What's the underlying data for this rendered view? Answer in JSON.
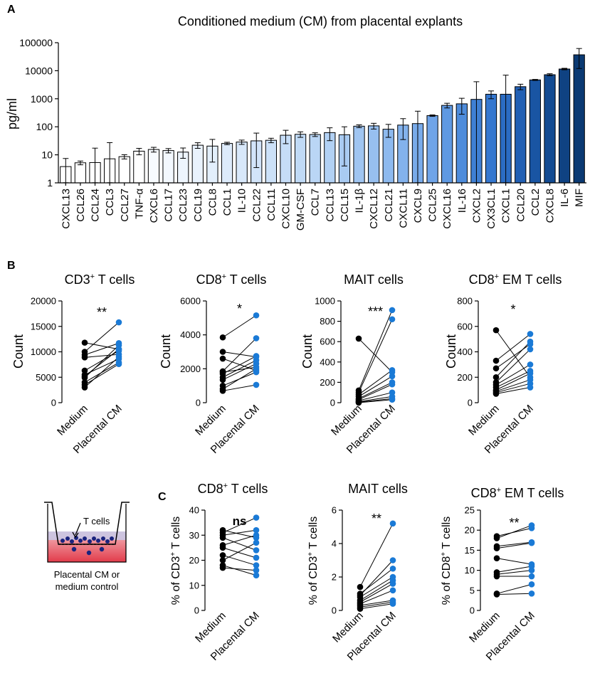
{
  "panel_labels": {
    "a": "A",
    "b": "B",
    "c": "C"
  },
  "chart_data": [
    {
      "id": "A",
      "type": "bar",
      "title": "Conditioned medium (CM) from placental explants",
      "ylabel": "pg/ml",
      "yscale": "log",
      "ylim": [
        1,
        100000
      ],
      "yticks": [
        1,
        10,
        100,
        1000,
        10000,
        100000
      ],
      "ytick_labels": [
        "1",
        "10",
        "100",
        "1000",
        "10000",
        "100000"
      ],
      "categories": [
        "CXCL13",
        "CCL26",
        "CCL24",
        "CCL3",
        "CCL27",
        "TNF-α",
        "CXCL6",
        "CCL17",
        "CCL23",
        "CCL19",
        "CCL8",
        "CCL1",
        "IL-10",
        "CCL22",
        "CCL11",
        "CXCL10",
        "GM-CSF",
        "CCL7",
        "CCL13",
        "CCL15",
        "IL-1β",
        "CXCL12",
        "CCL21",
        "CXCL11",
        "CXCL9",
        "CCL25",
        "CXCL16",
        "IL-16",
        "CXCL2",
        "CX3CL1",
        "CXCL1",
        "CCL20",
        "CCL2",
        "CXCL8",
        "IL-6",
        "MIF"
      ],
      "values": [
        3.8,
        5.2,
        5.3,
        7.2,
        8.6,
        13.5,
        15.5,
        14.2,
        12.5,
        22,
        20.5,
        25.5,
        28.5,
        31.5,
        33,
        50,
        54,
        53,
        62,
        52,
        105,
        108,
        82,
        115,
        130,
        250,
        580,
        660,
        950,
        1450,
        1450,
        2700,
        4700,
        7200,
        11500,
        37000
      ],
      "errors": [
        3.6,
        0.8,
        12,
        20,
        1.5,
        3.5,
        3,
        2.5,
        5,
        5,
        15,
        2.5,
        5,
        28,
        6,
        25,
        12,
        8,
        30,
        48,
        12,
        25,
        40,
        80,
        230,
        15,
        110,
        380,
        3100,
        450,
        5500,
        600,
        200,
        600,
        700,
        25000
      ],
      "colors": [
        "#ffffff",
        "#ffffff",
        "#ffffff",
        "#ffffff",
        "#ffffff",
        "#ffffff",
        "#f7fbff",
        "#f3f8fe",
        "#eef5fd",
        "#e9f2fd",
        "#e3effc",
        "#ddebfb",
        "#d8e8fa",
        "#d2e4f9",
        "#cce1f8",
        "#c6ddf7",
        "#c0daf6",
        "#bad6f5",
        "#b2d1f4",
        "#a9cbf2",
        "#a0c5f1",
        "#97bfef",
        "#8db9ee",
        "#83b2ec",
        "#79abea",
        "#6fa4e8",
        "#5f99e2",
        "#4e8cdb",
        "#3f80d5",
        "#3577cf",
        "#2b6cc3",
        "#2260b4",
        "#1955a3",
        "#134b92",
        "#0f4282",
        "#0b3a73"
      ]
    },
    {
      "id": "B1",
      "type": "scatter",
      "title": "CD3⁺ T cells",
      "ylabel": "Count",
      "ylim": [
        0,
        20000
      ],
      "yticks": [
        0,
        5000,
        10000,
        15000,
        20000
      ],
      "ytick_labels": [
        "0",
        "5000",
        "10000",
        "15000",
        "20000"
      ],
      "categories": [
        "Medium",
        "Placental CM"
      ],
      "significance": "**",
      "series": [
        {
          "name": "Medium",
          "color": "#000000",
          "values": [
            11800,
            10000,
            9400,
            8900,
            6300,
            5500,
            5200,
            4900,
            4000,
            3500,
            3000
          ]
        },
        {
          "name": "Placental CM",
          "color": "#1a7ad6",
          "values": [
            10500,
            15800,
            11700,
            9500,
            10200,
            8600,
            10500,
            11300,
            7900,
            7600,
            9000
          ]
        }
      ]
    },
    {
      "id": "B2",
      "type": "scatter",
      "title": "CD8⁺ T cells",
      "ylabel": "Count",
      "ylim": [
        0,
        6000
      ],
      "yticks": [
        0,
        2000,
        4000,
        6000
      ],
      "ytick_labels": [
        "0",
        "2000",
        "4000",
        "6000"
      ],
      "categories": [
        "Medium",
        "Placental CM"
      ],
      "significance": "*",
      "series": [
        {
          "name": "Medium",
          "color": "#000000",
          "values": [
            3850,
            3000,
            2600,
            1850,
            1800,
            1700,
            1500,
            1350,
            1000,
            800,
            700
          ]
        },
        {
          "name": "Placental CM",
          "color": "#1a7ad6",
          "values": [
            5150,
            2700,
            1900,
            3800,
            2100,
            2750,
            2500,
            2300,
            1800,
            2000,
            1050
          ]
        }
      ]
    },
    {
      "id": "B3",
      "type": "scatter",
      "title": "MAIT cells",
      "ylabel": "Count",
      "ylim": [
        0,
        1000
      ],
      "yticks": [
        0,
        200,
        400,
        600,
        800,
        1000
      ],
      "ytick_labels": [
        "0",
        "200",
        "400",
        "600",
        "800",
        "1000"
      ],
      "categories": [
        "Medium",
        "Placental CM"
      ],
      "significance": "***",
      "series": [
        {
          "name": "Medium",
          "color": "#000000",
          "values": [
            630,
            120,
            100,
            80,
            60,
            40,
            30,
            20,
            10,
            5,
            0
          ]
        },
        {
          "name": "Placental CM",
          "color": "#1a7ad6",
          "values": [
            300,
            910,
            820,
            320,
            260,
            200,
            180,
            100,
            60,
            40,
            30
          ]
        }
      ]
    },
    {
      "id": "B4",
      "type": "scatter",
      "title": "CD8⁺ EM T cells",
      "ylabel": "Count",
      "ylim": [
        0,
        800
      ],
      "yticks": [
        0,
        200,
        400,
        600,
        800
      ],
      "ytick_labels": [
        "0",
        "200",
        "400",
        "600",
        "800"
      ],
      "categories": [
        "Medium",
        "Placental CM"
      ],
      "significance": "*",
      "series": [
        {
          "name": "Medium",
          "color": "#000000",
          "values": [
            570,
            330,
            270,
            200,
            160,
            140,
            120,
            100,
            90,
            80,
            70
          ]
        },
        {
          "name": "Placental CM",
          "color": "#1a7ad6",
          "values": [
            200,
            540,
            460,
            480,
            420,
            300,
            250,
            230,
            180,
            150,
            120
          ]
        }
      ]
    },
    {
      "id": "C1",
      "type": "scatter",
      "title": "CD8⁺ T cells",
      "ylabel": "% of CD3⁺ T cells",
      "ylim": [
        0,
        40
      ],
      "yticks": [
        0,
        10,
        20,
        30,
        40
      ],
      "ytick_labels": [
        "0",
        "10",
        "20",
        "30",
        "40"
      ],
      "categories": [
        "Medium",
        "Placental CM"
      ],
      "significance": "ns",
      "series": [
        {
          "name": "Medium",
          "color": "#000000",
          "values": [
            32,
            31,
            30,
            29,
            26,
            25,
            22,
            20,
            18,
            17
          ]
        },
        {
          "name": "Placental CM",
          "color": "#1a7ad6",
          "values": [
            29,
            37,
            32,
            24,
            30,
            21,
            18,
            27,
            14,
            16
          ]
        }
      ]
    },
    {
      "id": "C2",
      "type": "scatter",
      "title": "MAIT cells",
      "ylabel": "% of CD3⁺ T cells",
      "ylim": [
        0,
        6
      ],
      "yticks": [
        0,
        2,
        4,
        6
      ],
      "ytick_labels": [
        "0",
        "2",
        "4",
        "6"
      ],
      "categories": [
        "Medium",
        "Placental CM"
      ],
      "significance": "**",
      "series": [
        {
          "name": "Medium",
          "color": "#000000",
          "values": [
            1.4,
            1.0,
            0.9,
            0.8,
            0.6,
            0.5,
            0.4,
            0.3,
            0.2,
            0.1
          ]
        },
        {
          "name": "Placental CM",
          "color": "#1a7ad6",
          "values": [
            5.2,
            2.5,
            3.0,
            2.0,
            1.8,
            1.6,
            1.2,
            0.6,
            0.5,
            0.4
          ]
        }
      ]
    },
    {
      "id": "C3",
      "type": "scatter",
      "title": "CD8⁺ EM T cells",
      "ylabel": "% of CD8⁺ T cells",
      "ylim": [
        0,
        25
      ],
      "yticks": [
        0,
        5,
        10,
        15,
        20,
        25
      ],
      "ytick_labels": [
        "0",
        "5",
        "10",
        "15",
        "20",
        "25"
      ],
      "categories": [
        "Medium",
        "Placental CM"
      ],
      "significance": "**",
      "series": [
        {
          "name": "Medium",
          "color": "#000000",
          "values": [
            18.5,
            18.0,
            16.0,
            15.5,
            13.0,
            9.5,
            9.0,
            8.5,
            4.2,
            4.0
          ]
        },
        {
          "name": "Placental CM",
          "color": "#1a7ad6",
          "values": [
            20.5,
            21.2,
            17.0,
            16.8,
            11.5,
            11.0,
            10.0,
            8.5,
            6.5,
            4.2
          ]
        }
      ]
    }
  ],
  "schematic": {
    "arrow_label": "T cells",
    "caption_line1": "Placental CM or",
    "caption_line2": "medium control"
  }
}
